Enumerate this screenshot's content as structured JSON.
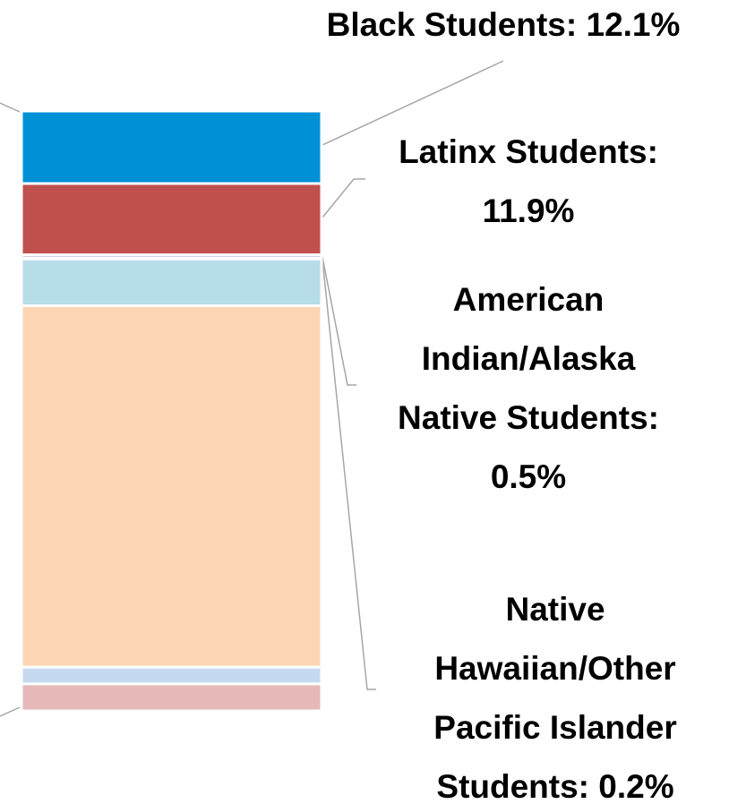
{
  "chart_data": {
    "type": "stacked_bar",
    "segments": [
      {
        "value": 12.1,
        "color": "#0090d6",
        "value_label": [
          "Black Students: 12.1%"
        ]
      },
      {
        "value": 11.9,
        "color": "#c0504d",
        "value_label": [
          "Latinx Students:",
          "11.9%"
        ]
      },
      {
        "value": 0.5,
        "color": "#8064a2",
        "value_label": [
          "American",
          "Indian/Alaska",
          "Native Students:",
          "0.5%"
        ]
      },
      {
        "value": 0.2,
        "color": "#4bacc6",
        "value_label": [
          "Native",
          "Hawaiian/Other",
          "Pacific Islander",
          "Students: 0.2%"
        ]
      },
      {
        "value": 7.8,
        "color": "#b7dde8",
        "value_label": null
      },
      {
        "value": 60.3,
        "color": "#fcd5b5",
        "value_label": null
      },
      {
        "value": 2.8,
        "color": "#c5d9f1",
        "value_label": null
      },
      {
        "value": 4.5,
        "color": "#e6b9b8",
        "value_label": null
      }
    ]
  }
}
